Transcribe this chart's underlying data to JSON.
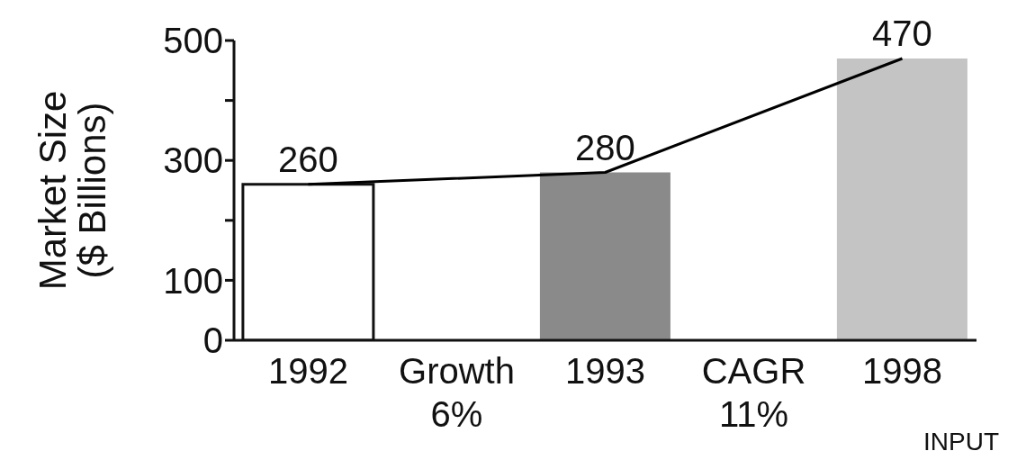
{
  "chart_data": {
    "type": "bar",
    "ylabel": "Market Size\n($ Billions)",
    "categories": [
      "1992",
      "Growth\n6%",
      "1993",
      "CAGR\n11%",
      "1998"
    ],
    "series": [
      {
        "values": [
          260,
          null,
          280,
          null,
          470
        ],
        "value_labels": [
          "260",
          null,
          "280",
          null,
          "470"
        ],
        "colors": [
          "#ffffff",
          null,
          "#8a8a8a",
          null,
          "#c4c4c4"
        ]
      },
      {
        "type": "line",
        "color": "#000000",
        "values": [
          260,
          null,
          280,
          null,
          470
        ]
      }
    ],
    "ylim": [
      0,
      500
    ],
    "yticks": [
      0,
      100,
      {
        "value": 200,
        "label": null
      },
      300,
      {
        "value": 400,
        "label": null
      },
      500
    ],
    "marker": "none",
    "grid": false,
    "legend": false,
    "annotations": [
      "INPUT"
    ]
  }
}
